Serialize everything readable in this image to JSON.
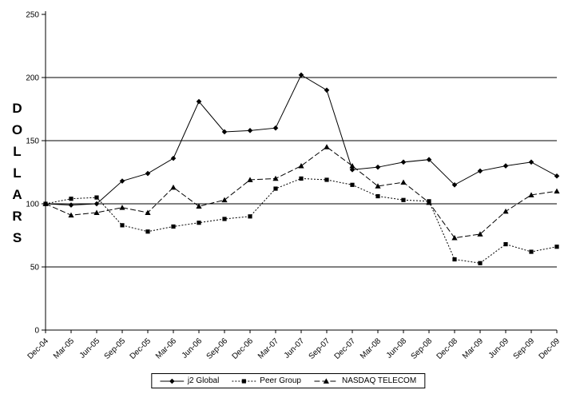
{
  "page": {
    "background": "#ffffff"
  },
  "chart_data": {
    "type": "line",
    "title": "",
    "xlabel": "",
    "ylabel": "DOLLARS",
    "ylim": [
      0,
      250
    ],
    "ytick_interval": 50,
    "yticks": [
      0,
      50,
      100,
      150,
      200,
      250
    ],
    "grid": "horizontal",
    "legend_position": "bottom",
    "categories": [
      "Dec-04",
      "Mar-05",
      "Jun-05",
      "Sep-05",
      "Dec-05",
      "Mar-06",
      "Jun-06",
      "Sep-06",
      "Dec-06",
      "Mar-07",
      "Jun-07",
      "Sep-07",
      "Dec-07",
      "Mar-08",
      "Jun-08",
      "Sep-08",
      "Dec-08",
      "Mar-09",
      "Jun-09",
      "Sep-09",
      "Dec-09"
    ],
    "series": [
      {
        "name": "j2 Global",
        "marker": "diamond",
        "line_style": "solid",
        "color": "#000000",
        "values": [
          100,
          99,
          100,
          118,
          124,
          136,
          181,
          157,
          158,
          160,
          202,
          190,
          127,
          129,
          133,
          135,
          115,
          126,
          130,
          133,
          122
        ]
      },
      {
        "name": "Peer Group",
        "marker": "square",
        "line_style": "dotted",
        "color": "#000000",
        "values": [
          100,
          104,
          105,
          83,
          78,
          82,
          85,
          88,
          90,
          112,
          120,
          119,
          115,
          106,
          103,
          102,
          56,
          53,
          68,
          62,
          66
        ]
      },
      {
        "name": "NASDAQ TELECOM",
        "marker": "triangle",
        "line_style": "dashed",
        "color": "#000000",
        "values": [
          100,
          91,
          93,
          97,
          93,
          113,
          98,
          103,
          119,
          120,
          130,
          145,
          130,
          114,
          117,
          101,
          73,
          76,
          94,
          107,
          110
        ]
      }
    ]
  }
}
